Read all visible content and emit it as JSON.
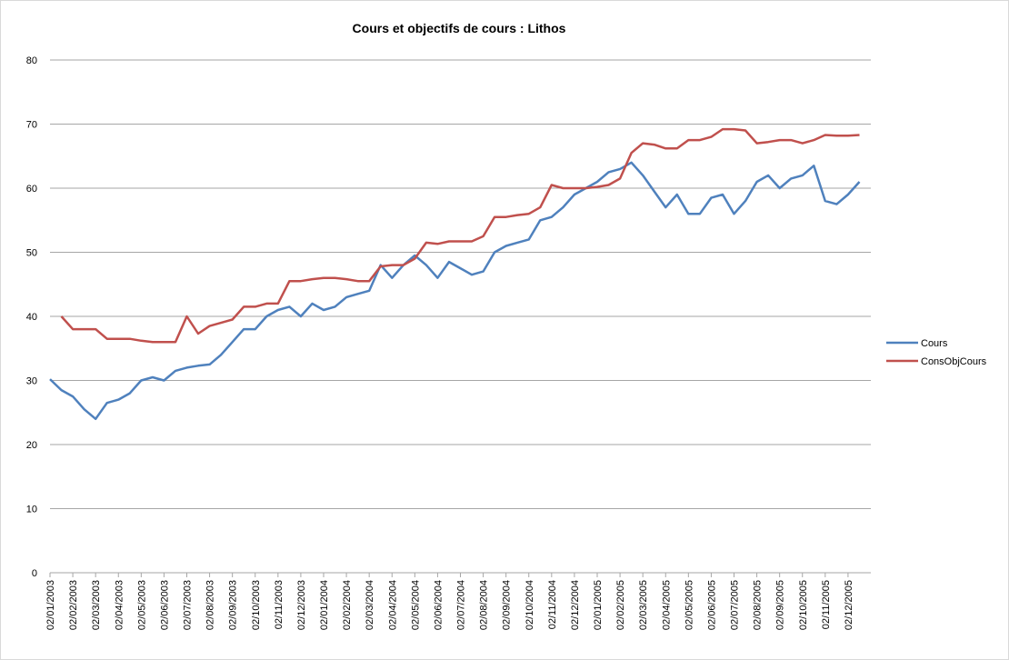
{
  "chart_data": {
    "type": "line",
    "title": "Cours et objectifs de cours : Lithos",
    "categories": [
      "02/01/2003",
      null,
      "02/02/2003",
      null,
      "02/03/2003",
      null,
      "02/04/2003",
      null,
      "02/05/2003",
      null,
      "02/06/2003",
      null,
      "02/07/2003",
      null,
      "02/08/2003",
      null,
      "02/09/2003",
      null,
      "02/10/2003",
      null,
      "02/11/2003",
      null,
      "02/12/2003",
      null,
      "02/01/2004",
      null,
      "02/02/2004",
      null,
      "02/03/2004",
      null,
      "02/04/2004",
      null,
      "02/05/2004",
      null,
      "02/06/2004",
      null,
      "02/07/2004",
      null,
      "02/08/2004",
      null,
      "02/09/2004",
      null,
      "02/10/2004",
      null,
      "02/11/2004",
      null,
      "02/12/2004",
      null,
      "02/01/2005",
      null,
      "02/02/2005",
      null,
      "02/03/2005",
      null,
      "02/04/2005",
      null,
      "02/05/2005",
      null,
      "02/06/2005",
      null,
      "02/07/2005",
      null,
      "02/08/2005",
      null,
      "02/09/2005",
      null,
      "02/10/2005",
      null,
      "02/11/2005",
      null,
      "02/12/2005",
      null
    ],
    "series": [
      {
        "name": "Cours",
        "color": "#4f81bd",
        "values": [
          30.2,
          28.5,
          27.5,
          25.5,
          24,
          26.5,
          27,
          28,
          30,
          30.5,
          30,
          31.5,
          32,
          32.3,
          32.5,
          34,
          36,
          38,
          38,
          40,
          41,
          41.5,
          40,
          42,
          41,
          41.5,
          43,
          43.5,
          44,
          48,
          46,
          48,
          49.5,
          48,
          46,
          48.5,
          47.5,
          46.5,
          47,
          50,
          51,
          51.5,
          52,
          55,
          55.5,
          57,
          59,
          60,
          61,
          62.5,
          63,
          64,
          62,
          59.5,
          57,
          59,
          56,
          56,
          58.5,
          59,
          56,
          58,
          61,
          62,
          60,
          61.5,
          62,
          63.5,
          58,
          57.5,
          59,
          61
        ]
      },
      {
        "name": "ConsObjCours",
        "color": "#c0504d",
        "values": [
          null,
          40,
          38,
          38,
          38,
          36.5,
          36.5,
          36.5,
          36.2,
          36,
          36,
          36,
          40,
          37.3,
          38.5,
          39,
          39.5,
          41.5,
          41.5,
          42,
          42,
          45.5,
          45.5,
          45.8,
          46,
          46,
          45.8,
          45.5,
          45.5,
          47.8,
          48,
          48,
          49,
          51.5,
          51.3,
          51.7,
          51.7,
          51.7,
          52.5,
          55.5,
          55.5,
          55.8,
          56,
          57,
          60.5,
          60,
          60,
          60,
          60.2,
          60.5,
          61.5,
          65.5,
          67,
          66.8,
          66.2,
          66.2,
          67.5,
          67.5,
          68,
          69.2,
          69.2,
          69,
          67,
          67.2,
          67.5,
          67.5,
          67,
          67.5,
          68.3,
          68.2,
          68.2,
          68.3
        ]
      }
    ],
    "ylim": [
      0,
      80
    ],
    "yticks": [
      0,
      10,
      20,
      30,
      40,
      50,
      60,
      70,
      80
    ],
    "grid": true,
    "legend": "right"
  }
}
